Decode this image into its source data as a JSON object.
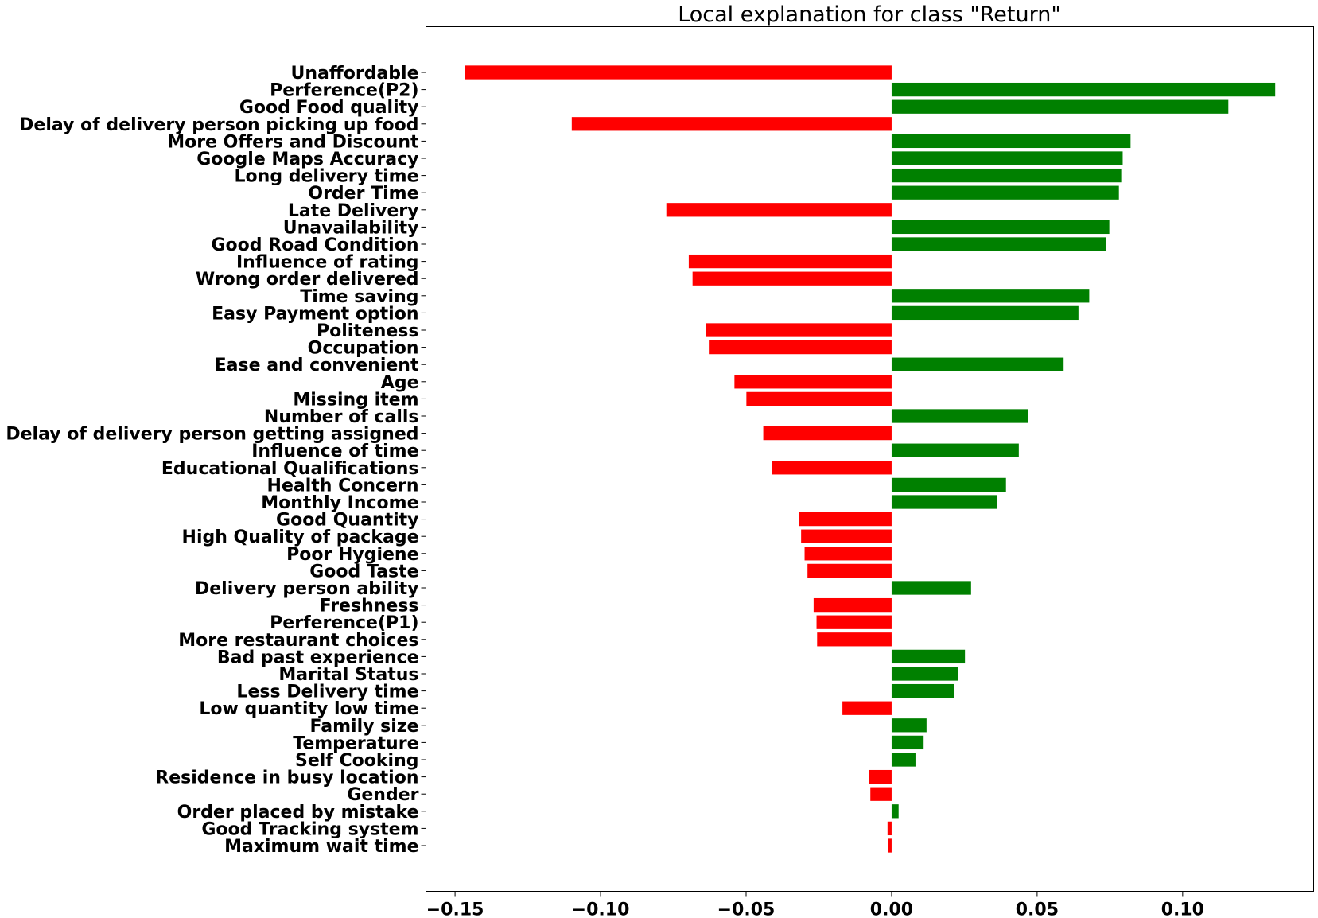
{
  "chart_data": {
    "type": "bar",
    "orientation": "horizontal",
    "title": "Local explanation for class \"Return\"",
    "xlabel": "",
    "ylabel": "",
    "xlim": [
      -0.16,
      0.145
    ],
    "xticks": [
      -0.15,
      -0.1,
      -0.05,
      0.0,
      0.05,
      0.1
    ],
    "xtick_labels": [
      "−0.15",
      "−0.10",
      "−0.05",
      "0.00",
      "0.05",
      "0.10"
    ],
    "grid": false,
    "colors": {
      "positive": "#008000",
      "negative": "#ff0000"
    },
    "categories": [
      "Unaffordable",
      "Perference(P2)",
      "Good Food quality",
      "Delay of delivery person picking up food",
      "More Offers and Discount",
      "Google Maps Accuracy",
      "Long delivery time",
      "Order Time",
      "Late Delivery",
      "Unavailability",
      "Good Road Condition",
      "Influence of rating",
      "Wrong order delivered",
      "Time saving",
      "Easy Payment option",
      "Politeness",
      "Occupation",
      "Ease and convenient",
      "Age",
      "Missing item",
      "Number of calls",
      "Delay of delivery person getting assigned",
      "Influence of time",
      "Educational Qualifications",
      "Health Concern",
      "Monthly Income",
      "Good Quantity",
      "High Quality of package",
      "Poor Hygiene",
      "Good Taste ",
      "Delivery person ability",
      "Freshness ",
      "Perference(P1)",
      "More restaurant choices",
      "Bad past experience",
      "Marital Status",
      "Less Delivery time",
      "Low quantity low time",
      "Family size",
      "Temperature",
      "Self Cooking",
      "Residence in busy location",
      "Gender",
      "Order placed by mistake",
      "Good Tracking system",
      "Maximum wait time"
    ],
    "values": [
      -0.1465,
      0.1318,
      0.1157,
      -0.1099,
      0.0821,
      0.0794,
      0.0789,
      0.0781,
      -0.0774,
      0.0748,
      0.0737,
      -0.0697,
      -0.0684,
      0.0679,
      0.0642,
      -0.0637,
      -0.0628,
      0.0591,
      -0.054,
      -0.0499,
      0.047,
      -0.0441,
      0.0437,
      -0.041,
      0.0393,
      0.0362,
      -0.0319,
      -0.0311,
      -0.0299,
      -0.0289,
      0.0273,
      -0.0268,
      -0.0258,
      -0.0256,
      0.0252,
      0.0227,
      0.0216,
      -0.0169,
      0.012,
      0.011,
      0.0082,
      -0.0078,
      -0.0073,
      0.0024,
      -0.0014,
      -0.0012
    ]
  }
}
